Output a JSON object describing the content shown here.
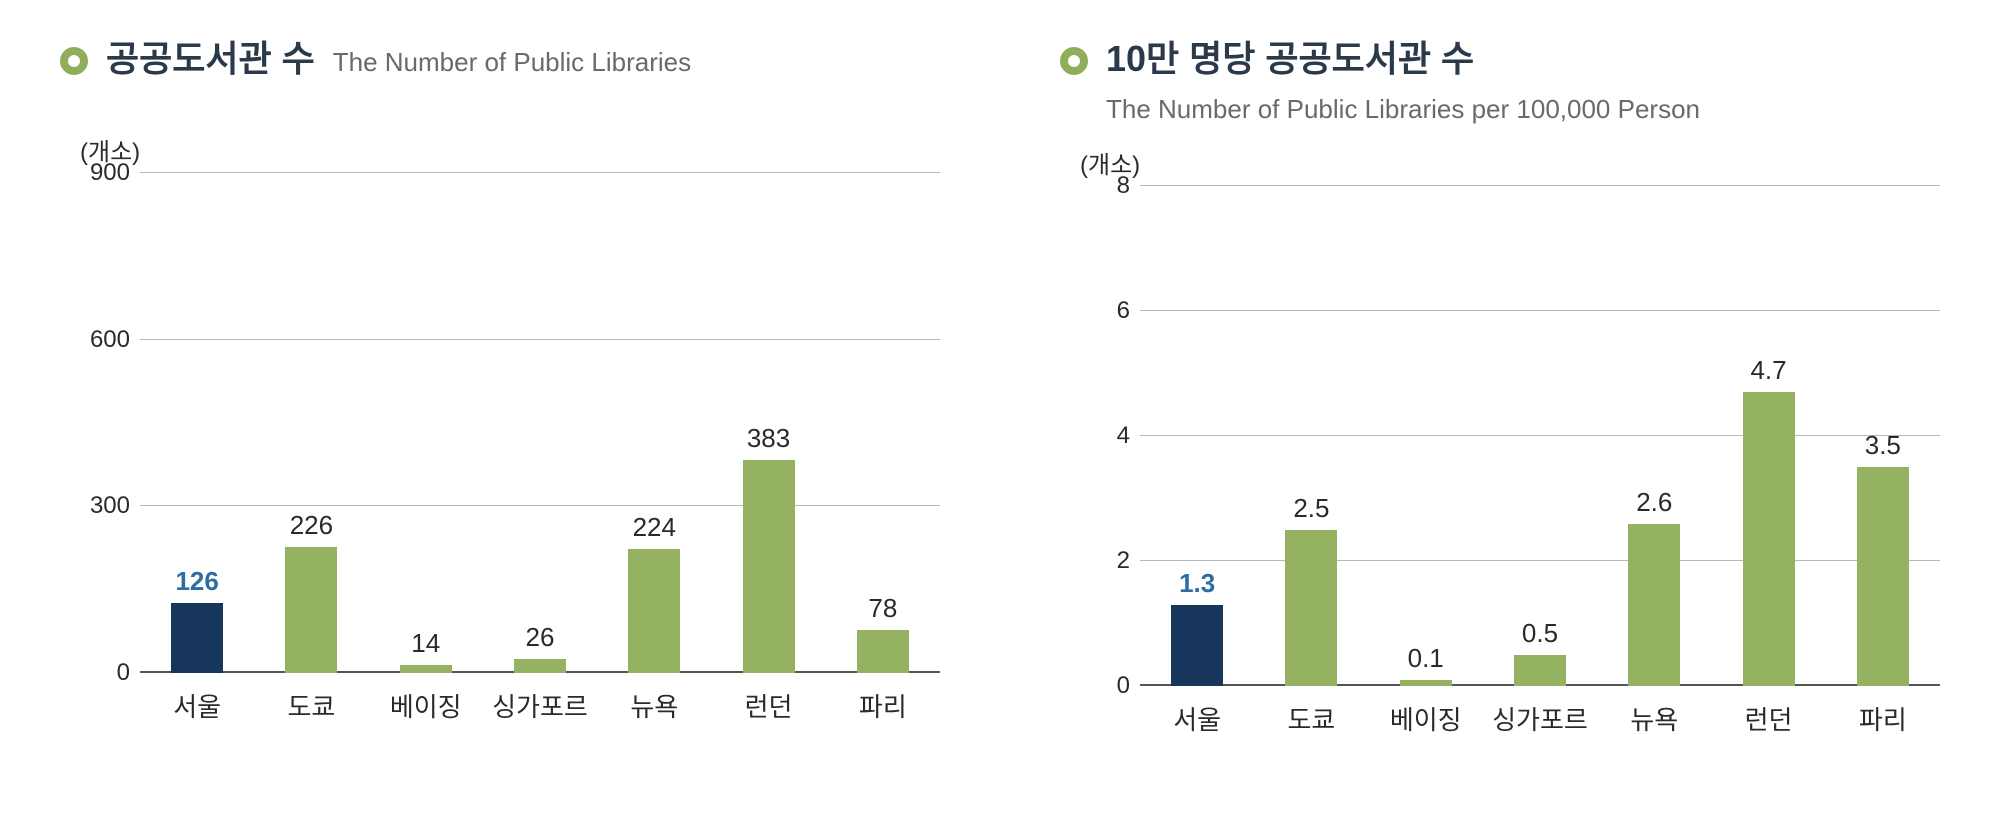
{
  "colors": {
    "bullet": "#8fae5a",
    "title_ko": "#2a3a4a",
    "title_en": "#6a6a6a",
    "unit": "#2a2a2a",
    "tick": "#2a2a2a",
    "grid": "#b8b8b8",
    "baseline": "#555555",
    "bar_default": "#95b263",
    "bar_highlight": "#16365c",
    "value_default": "#2a2a2a",
    "value_highlight": "#2e6ca4",
    "xlabel": "#2a2a2a"
  },
  "chart_left": {
    "title_ko": "공공도서관 수",
    "title_en": "The Number of Public Libraries",
    "unit": "(개소)",
    "ymin": 0,
    "ymax": 900,
    "yticks": [
      0,
      300,
      600,
      900
    ],
    "categories": [
      "서울",
      "도쿄",
      "베이징",
      "싱가포르",
      "뉴욕",
      "런던",
      "파리"
    ],
    "values": [
      126,
      226,
      14,
      26,
      224,
      383,
      78
    ],
    "highlight_index": 0
  },
  "chart_right": {
    "title_ko": "10만 명당 공공도서관 수",
    "title_en": "The Number of Public Libraries per 100,000 Person",
    "unit": "(개소)",
    "ymin": 0,
    "ymax": 8,
    "yticks": [
      0,
      2,
      4,
      6,
      8
    ],
    "categories": [
      "서울",
      "도쿄",
      "베이징",
      "싱가포르",
      "뉴욕",
      "런던",
      "파리"
    ],
    "values": [
      1.3,
      2.5,
      0.1,
      0.5,
      2.6,
      4.7,
      3.5
    ],
    "highlight_index": 0
  }
}
